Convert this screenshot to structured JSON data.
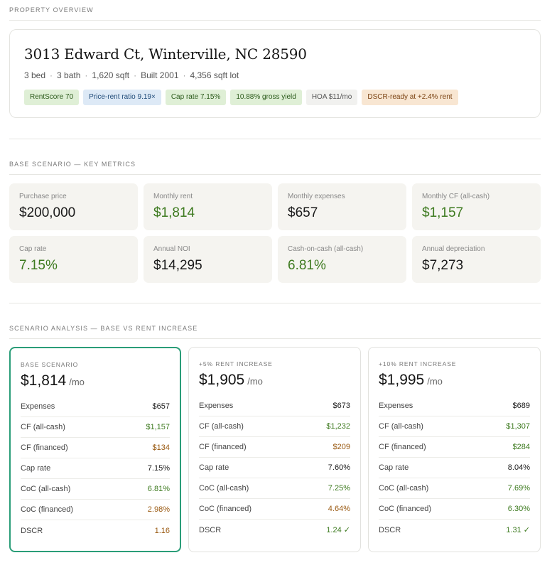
{
  "sections": {
    "overview": "PROPERTY OVERVIEW",
    "metrics": "BASE SCENARIO — KEY METRICS",
    "scenarios": "SCENARIO ANALYSIS — BASE VS RENT INCREASE"
  },
  "property": {
    "address": "3013 Edward Ct, Winterville, NC 28590",
    "specs": [
      "3 bed",
      "3 bath",
      "1,620 sqft",
      "Built 2001",
      "4,356 sqft lot"
    ],
    "pills": [
      {
        "text": "RentScore 70",
        "tone": "green"
      },
      {
        "text": "Price-rent ratio 9.19×",
        "tone": "blue"
      },
      {
        "text": "Cap rate 7.15%",
        "tone": "green"
      },
      {
        "text": "10.88% gross yield",
        "tone": "green"
      },
      {
        "text": "HOA $11/mo",
        "tone": "gray"
      },
      {
        "text": "DSCR-ready at +2.4% rent",
        "tone": "orange"
      }
    ]
  },
  "metrics": [
    {
      "label": "Purchase price",
      "value": "$200,000",
      "tone": "neutral"
    },
    {
      "label": "Monthly rent",
      "value": "$1,814",
      "tone": "pos"
    },
    {
      "label": "Monthly expenses",
      "value": "$657",
      "tone": "neutral"
    },
    {
      "label": "Monthly CF (all-cash)",
      "value": "$1,157",
      "tone": "pos"
    },
    {
      "label": "Cap rate",
      "value": "7.15%",
      "tone": "pos"
    },
    {
      "label": "Annual NOI",
      "value": "$14,295",
      "tone": "neutral"
    },
    {
      "label": "Cash-on-cash (all-cash)",
      "value": "6.81%",
      "tone": "pos"
    },
    {
      "label": "Annual depreciation",
      "value": "$7,273",
      "tone": "neutral"
    }
  ],
  "scenarios": [
    {
      "label": "BASE SCENARIO",
      "rent": "$1,814",
      "unit": "/mo",
      "active": true,
      "rows": [
        {
          "label": "Expenses",
          "value": "$657",
          "tone": "neutral"
        },
        {
          "label": "CF (all-cash)",
          "value": "$1,157",
          "tone": "pos"
        },
        {
          "label": "CF (financed)",
          "value": "$134",
          "tone": "warn"
        },
        {
          "label": "Cap rate",
          "value": "7.15%",
          "tone": "neutral"
        },
        {
          "label": "CoC (all-cash)",
          "value": "6.81%",
          "tone": "pos"
        },
        {
          "label": "CoC (financed)",
          "value": "2.98%",
          "tone": "warn"
        },
        {
          "label": "DSCR",
          "value": "1.16",
          "tone": "warn"
        }
      ]
    },
    {
      "label": "+5% RENT INCREASE",
      "rent": "$1,905",
      "unit": "/mo",
      "active": false,
      "rows": [
        {
          "label": "Expenses",
          "value": "$673",
          "tone": "neutral"
        },
        {
          "label": "CF (all-cash)",
          "value": "$1,232",
          "tone": "pos"
        },
        {
          "label": "CF (financed)",
          "value": "$209",
          "tone": "warn"
        },
        {
          "label": "Cap rate",
          "value": "7.60%",
          "tone": "neutral"
        },
        {
          "label": "CoC (all-cash)",
          "value": "7.25%",
          "tone": "pos"
        },
        {
          "label": "CoC (financed)",
          "value": "4.64%",
          "tone": "warn"
        },
        {
          "label": "DSCR",
          "value": "1.24 ✓",
          "tone": "pos"
        }
      ]
    },
    {
      "label": "+10% RENT INCREASE",
      "rent": "$1,995",
      "unit": "/mo",
      "active": false,
      "rows": [
        {
          "label": "Expenses",
          "value": "$689",
          "tone": "neutral"
        },
        {
          "label": "CF (all-cash)",
          "value": "$1,307",
          "tone": "pos"
        },
        {
          "label": "CF (financed)",
          "value": "$284",
          "tone": "pos"
        },
        {
          "label": "Cap rate",
          "value": "8.04%",
          "tone": "neutral"
        },
        {
          "label": "CoC (all-cash)",
          "value": "7.69%",
          "tone": "pos"
        },
        {
          "label": "CoC (financed)",
          "value": "6.30%",
          "tone": "pos"
        },
        {
          "label": "DSCR",
          "value": "1.31 ✓",
          "tone": "pos"
        }
      ]
    }
  ]
}
